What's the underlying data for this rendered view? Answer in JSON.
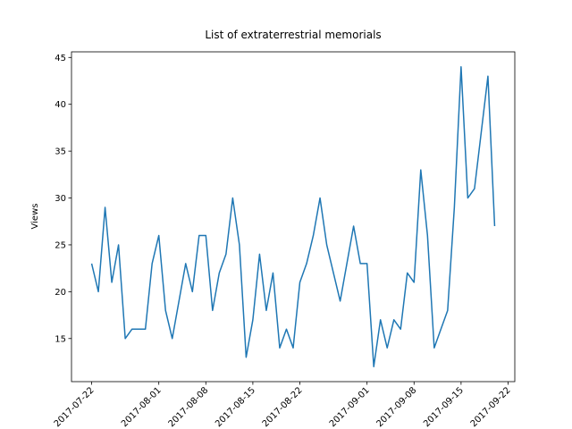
{
  "chart_data": {
    "type": "line",
    "title": "List of extraterrestrial memorials",
    "y_label": "Views",
    "x": [
      "2017-07-22",
      "2017-07-23",
      "2017-07-24",
      "2017-07-25",
      "2017-07-26",
      "2017-07-27",
      "2017-07-28",
      "2017-07-29",
      "2017-07-30",
      "2017-07-31",
      "2017-08-01",
      "2017-08-02",
      "2017-08-03",
      "2017-08-04",
      "2017-08-05",
      "2017-08-06",
      "2017-08-07",
      "2017-08-08",
      "2017-08-09",
      "2017-08-10",
      "2017-08-11",
      "2017-08-12",
      "2017-08-13",
      "2017-08-14",
      "2017-08-15",
      "2017-08-16",
      "2017-08-17",
      "2017-08-18",
      "2017-08-19",
      "2017-08-20",
      "2017-08-21",
      "2017-08-22",
      "2017-08-23",
      "2017-08-24",
      "2017-08-25",
      "2017-08-26",
      "2017-08-27",
      "2017-08-28",
      "2017-08-29",
      "2017-08-30",
      "2017-08-31",
      "2017-09-01",
      "2017-09-02",
      "2017-09-03",
      "2017-09-04",
      "2017-09-05",
      "2017-09-06",
      "2017-09-07",
      "2017-09-08",
      "2017-09-09",
      "2017-09-10",
      "2017-09-11",
      "2017-09-12",
      "2017-09-13",
      "2017-09-14",
      "2017-09-15",
      "2017-09-16",
      "2017-09-17",
      "2017-09-18",
      "2017-09-19",
      "2017-09-20"
    ],
    "series": [
      {
        "name": "Views",
        "color": "#1f77b4",
        "values": [
          23,
          20,
          29,
          21,
          25,
          15,
          16,
          16,
          16,
          23,
          26,
          18,
          15,
          19,
          23,
          20,
          26,
          26,
          18,
          22,
          24,
          30,
          25,
          13,
          17,
          24,
          18,
          22,
          14,
          16,
          14,
          21,
          23,
          26,
          30,
          25,
          22,
          19,
          23,
          27,
          23,
          23,
          12,
          17,
          14,
          17,
          16,
          22,
          21,
          33,
          26,
          14,
          16,
          18,
          29,
          44,
          30,
          31,
          37,
          43,
          27
        ]
      }
    ],
    "xlim": [
      "2017-07-19",
      "2017-09-23"
    ],
    "xticks": [
      "2017-07-22",
      "2017-08-01",
      "2017-08-08",
      "2017-08-15",
      "2017-08-22",
      "2017-09-01",
      "2017-09-08",
      "2017-09-15",
      "2017-09-22"
    ],
    "ylim": [
      10.4,
      45.6
    ],
    "yticks": [
      15,
      20,
      25,
      30,
      35,
      40,
      45
    ]
  }
}
